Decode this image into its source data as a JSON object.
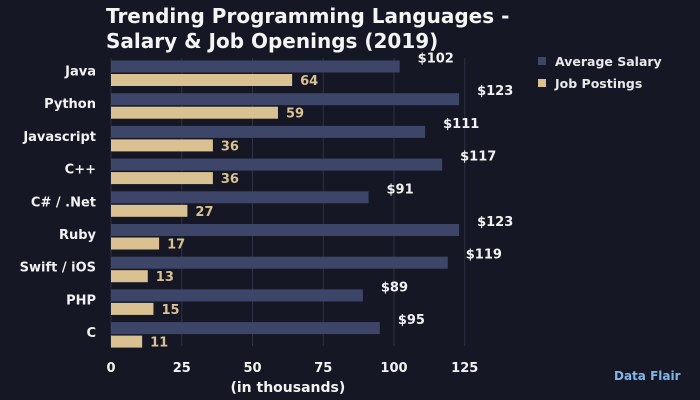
{
  "title_lines": [
    "Trending Programming Languages -",
    "Salary & Job Openings (2019)"
  ],
  "legend": [
    {
      "label": "Average Salary",
      "color": "#3d4568"
    },
    {
      "label": "Job Postings",
      "color": "#d9c191"
    }
  ],
  "brand": {
    "logo_text": "Data Flair",
    "logo_color": "#7fb8e8"
  },
  "chart_data": {
    "type": "bar",
    "orientation": "horizontal",
    "title": "Trending Programming Languages - Salary & Job Openings (2019)",
    "categories": [
      "Java",
      "Python",
      "Javascript",
      "C++",
      "C# / .Net",
      "Ruby",
      "Swift / iOS",
      "PHP",
      "C"
    ],
    "series": [
      {
        "name": "Average Salary",
        "values": [
          102,
          123,
          111,
          117,
          91,
          123,
          119,
          89,
          95
        ],
        "labels": [
          "$102",
          "$123",
          "$111",
          "$117",
          "$91",
          "$123",
          "$119",
          "$89",
          "$95"
        ],
        "color": "#3d4568"
      },
      {
        "name": "Job Postings",
        "values": [
          64,
          59,
          36,
          36,
          27,
          17,
          13,
          15,
          11
        ],
        "labels": [
          "64",
          "59",
          "36",
          "36",
          "27",
          "17",
          "13",
          "15",
          "11"
        ],
        "color": "#d9c191"
      }
    ],
    "xlabel": "(in thousands)",
    "ylabel": "",
    "xticks": [
      "0",
      "25",
      "50",
      "75",
      "100",
      "125"
    ],
    "xlim": [
      0,
      125
    ],
    "grid": "vertical",
    "legend_position": "top-right"
  }
}
